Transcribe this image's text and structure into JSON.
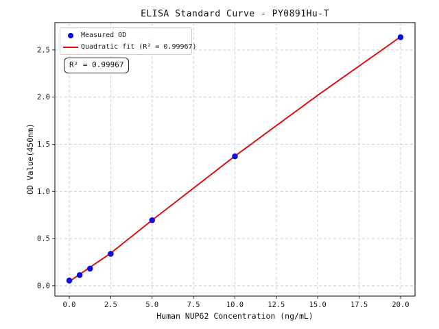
{
  "chart_data": {
    "type": "scatter",
    "title": "ELISA Standard Curve - PY0891Hu-T",
    "xlabel": "Human NUP62 Concentration (ng/mL)",
    "ylabel": "OD Value(450nm)",
    "x_ticks": [
      0.0,
      2.5,
      5.0,
      7.5,
      10.0,
      12.5,
      15.0,
      17.5,
      20.0
    ],
    "y_ticks": [
      0.0,
      0.5,
      1.0,
      1.5,
      2.0,
      2.5
    ],
    "xlim": [
      -0.87,
      20.87
    ],
    "ylim": [
      -0.11,
      2.79
    ],
    "grid": "dashed",
    "legend_position": "upper-left",
    "series": [
      {
        "name": "Measured OD",
        "type": "scatter",
        "color": "#0d0de0",
        "x": [
          0,
          0.625,
          1.25,
          2.5,
          5,
          10,
          20
        ],
        "y": [
          0.055,
          0.113,
          0.181,
          0.338,
          0.695,
          1.372,
          2.635
        ]
      },
      {
        "name": "Quadratic fit (R² = 0.99967)",
        "type": "line",
        "color": "#e00d0d",
        "x": [
          0,
          2.5,
          5,
          10,
          15,
          20
        ],
        "y": [
          0.045,
          0.345,
          0.695,
          1.375,
          2.02,
          2.64
        ]
      }
    ],
    "annotation": "R² = 0.99967",
    "r_squared": 0.99967,
    "colors": {
      "marker": "#0d0de0",
      "fit_line": "#e00d0d",
      "grid": "#c9c9c9",
      "spine": "#2a2a2a",
      "text": "#1a1a1a"
    }
  }
}
